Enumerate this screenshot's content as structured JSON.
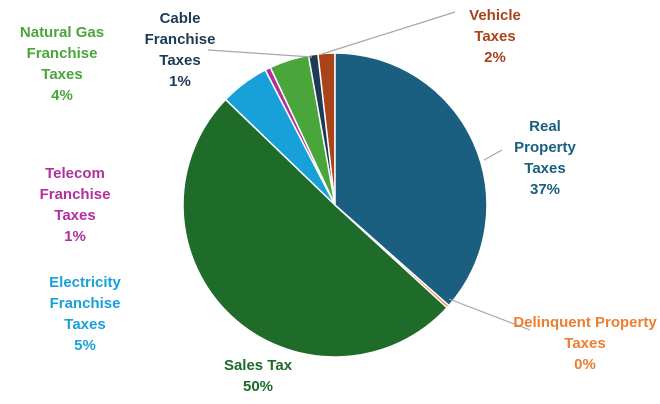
{
  "chart_data": {
    "type": "pie",
    "categories": [
      "Real Property Taxes",
      "Delinquent Property Taxes",
      "Sales Tax",
      "Electricity Franchise Taxes",
      "Telecom Franchise Taxes",
      "Natural Gas Franchise Taxes",
      "Cable Franchise Taxes",
      "Vehicle Taxes"
    ],
    "values": [
      36.5,
      0.3,
      50.4,
      5.2,
      0.6,
      4.2,
      1.0,
      1.8
    ],
    "value_labels": [
      "37%",
      "0%",
      "50%",
      "5%",
      "1%",
      "4%",
      "1%",
      "2%"
    ],
    "colors": [
      "#1a5e80",
      "#ed7d31",
      "#1e6b2a",
      "#18a0d8",
      "#b0309e",
      "#4aa63a",
      "#1c3a55",
      "#a8431a"
    ]
  }
}
